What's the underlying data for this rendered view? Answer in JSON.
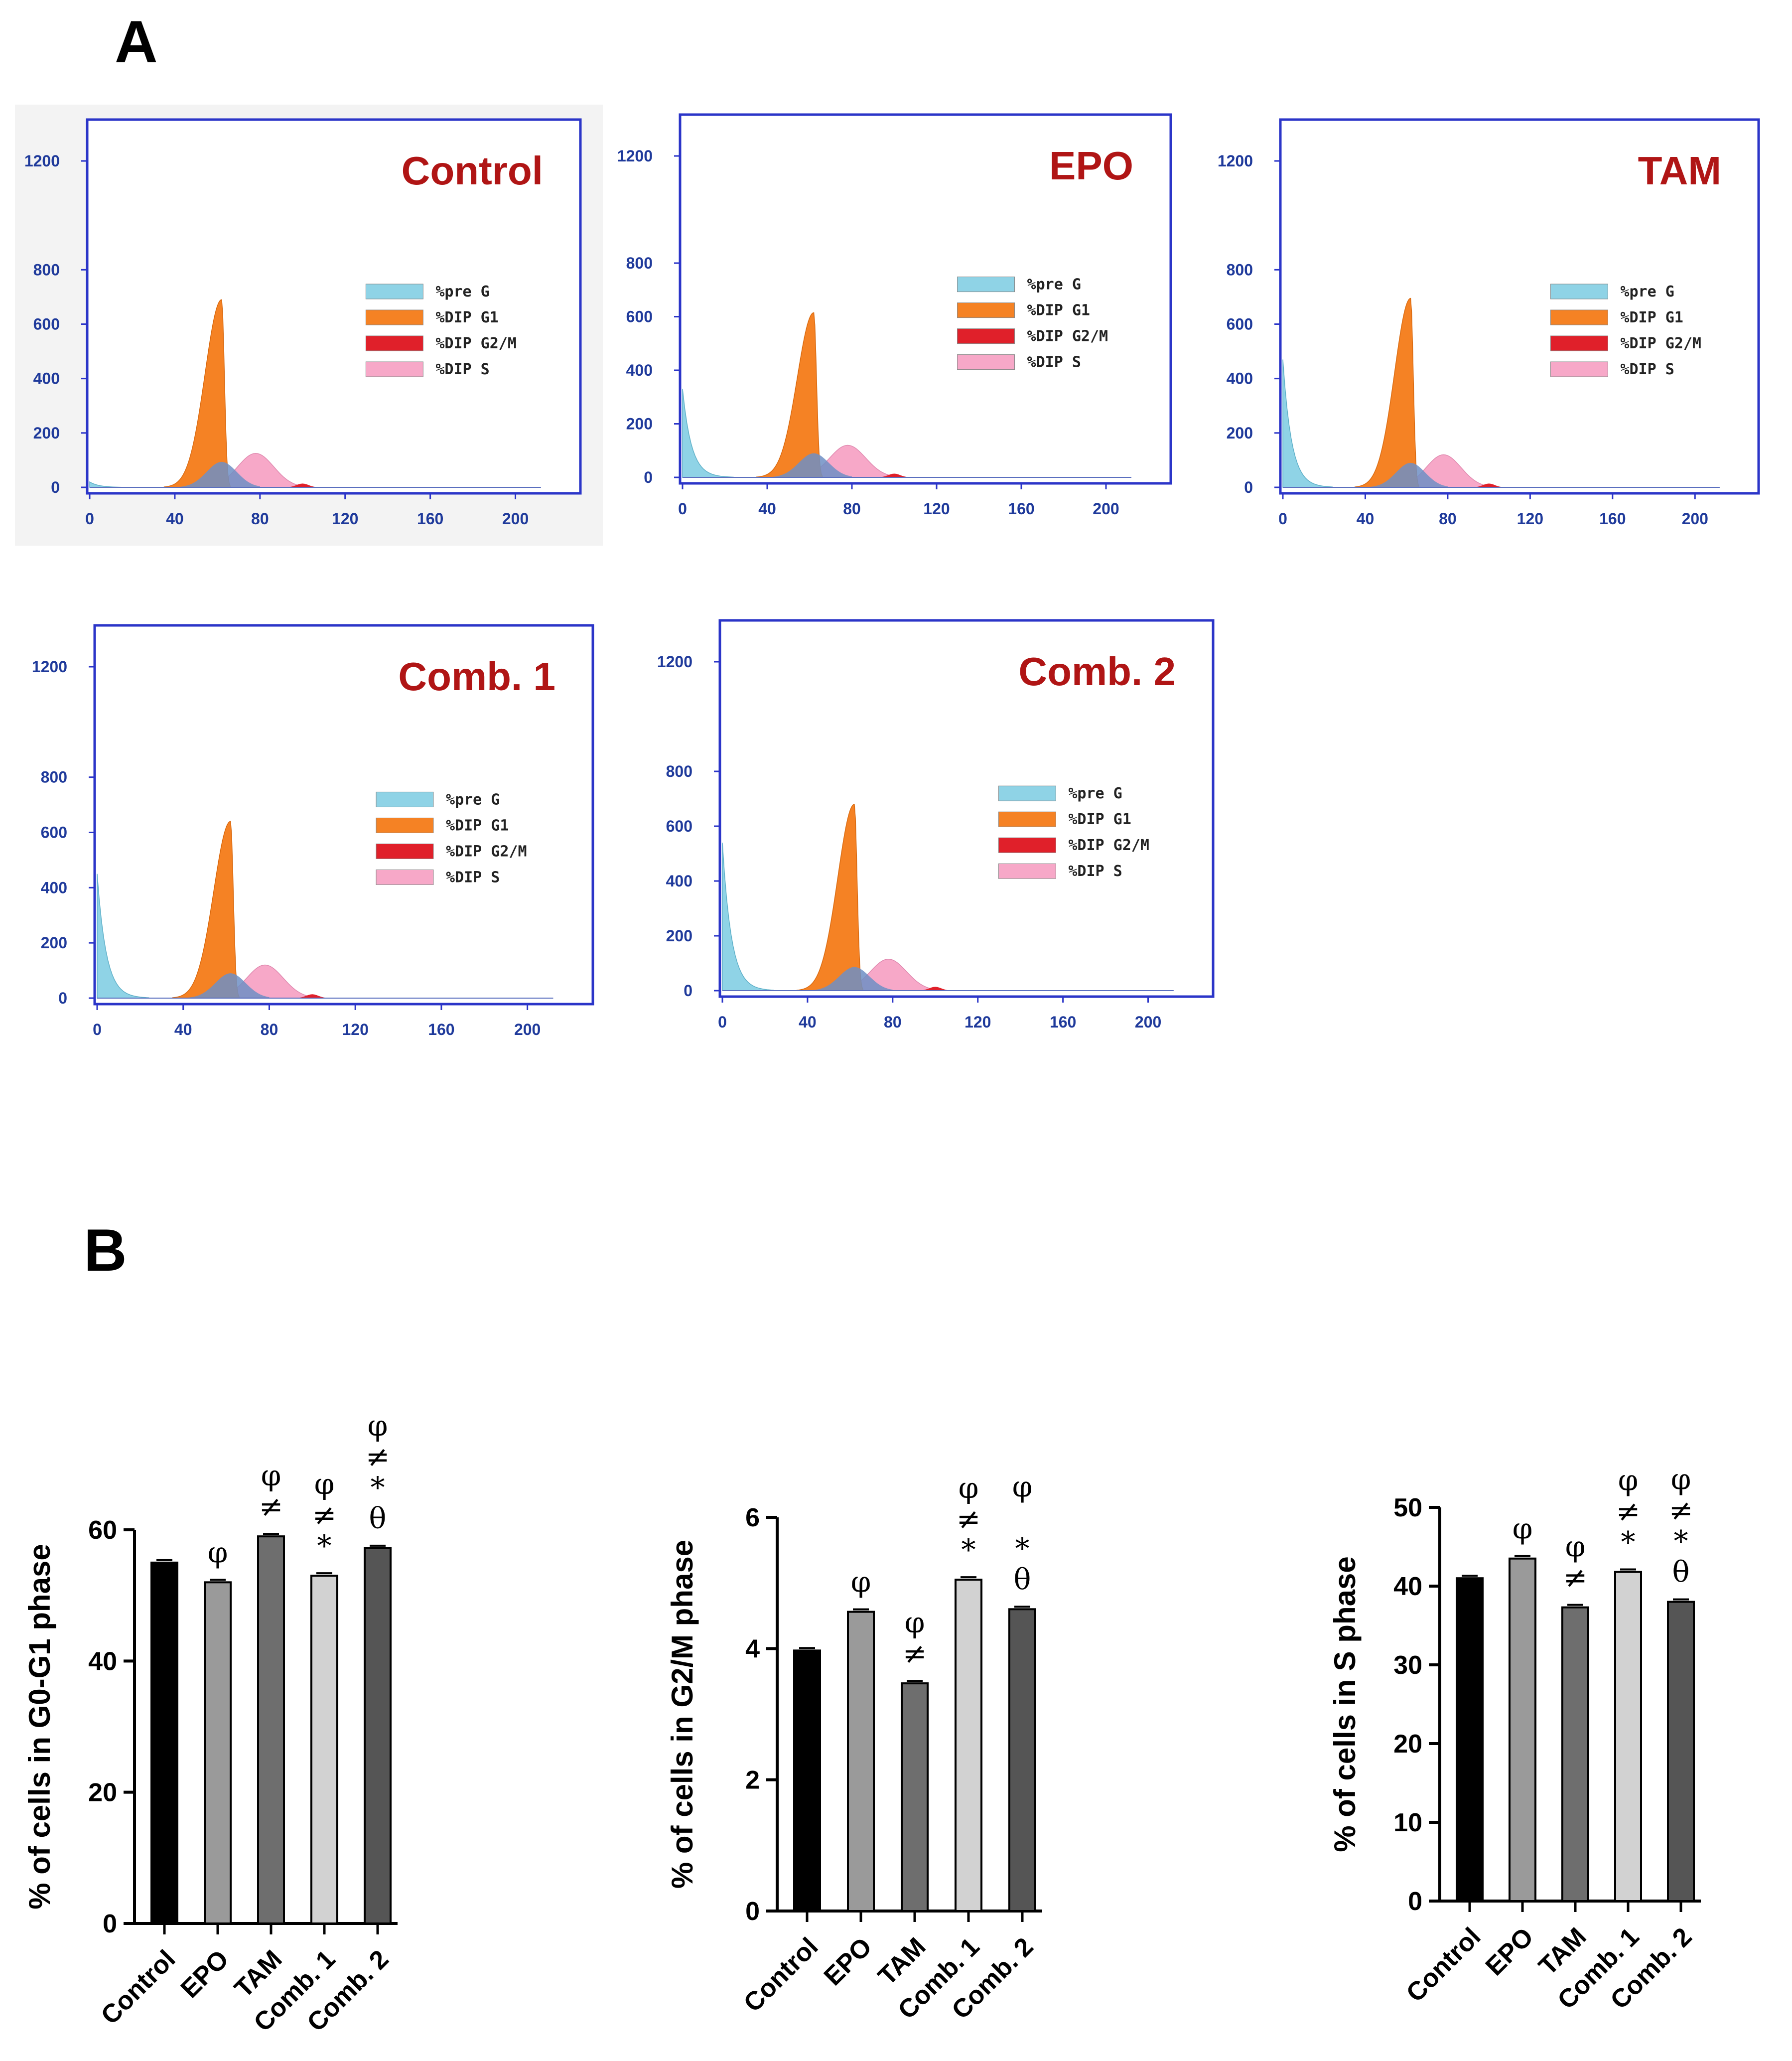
{
  "panel_a": {
    "label": "A",
    "x_ticks": [
      "0",
      "40",
      "80",
      "120",
      "160",
      "200"
    ],
    "y_ticks": [
      "0",
      "200",
      "400",
      "600",
      "800",
      "1200"
    ],
    "legend": [
      {
        "label": "%pre G",
        "color": "#8fd3e6"
      },
      {
        "label": "%DIP G1",
        "color": "#f58224"
      },
      {
        "label": "%DIP G2/M",
        "color": "#e0202a"
      },
      {
        "label": "%DIP S",
        "color": "#f7a8c8"
      }
    ],
    "histograms": [
      {
        "title": "Control",
        "preg_peak": 20,
        "g1_peak": 690,
        "s_peak": 125
      },
      {
        "title": "EPO",
        "preg_peak": 330,
        "g1_peak": 615,
        "s_peak": 120
      },
      {
        "title": "TAM",
        "preg_peak": 470,
        "g1_peak": 695,
        "s_peak": 120
      },
      {
        "title": "Comb. 1",
        "preg_peak": 450,
        "g1_peak": 640,
        "s_peak": 120
      },
      {
        "title": "Comb. 2",
        "preg_peak": 540,
        "g1_peak": 680,
        "s_peak": 115
      }
    ]
  },
  "panel_b": {
    "label": "B",
    "colors": {
      "Control": "#000000",
      "EPO": "#9a9a9a",
      "TAM": "#6e6e6e",
      "Comb. 1": "#d2d2d2",
      "Comb. 2": "#555555"
    }
  },
  "chart_data": [
    {
      "type": "bar",
      "title": "",
      "xlabel": "",
      "ylabel": "% of cells in G0-G1 phase",
      "categories": [
        "Control",
        "EPO",
        "TAM",
        "Comb. 1",
        "Comb. 2"
      ],
      "values": [
        55,
        52,
        59,
        53,
        57.2
      ],
      "ylim": [
        0,
        60
      ],
      "yticks": [
        "0",
        "20",
        "40",
        "60"
      ],
      "annotations": [
        [],
        [
          "φ"
        ],
        [
          "φ",
          "≠"
        ],
        [
          "φ",
          "≠",
          "*"
        ],
        [
          "φ",
          "≠",
          "*",
          "θ"
        ]
      ]
    },
    {
      "type": "bar",
      "title": "",
      "xlabel": "",
      "ylabel": "% of cells in G2/M phase",
      "categories": [
        "Control",
        "EPO",
        "TAM",
        "Comb. 1",
        "Comb. 2"
      ],
      "values": [
        3.97,
        4.56,
        3.47,
        5.05,
        4.6
      ],
      "ylim": [
        0,
        6
      ],
      "yticks": [
        "0",
        "2",
        "4",
        "6"
      ],
      "annotations": [
        [],
        [
          "φ"
        ],
        [
          "φ",
          "≠"
        ],
        [
          "φ",
          "≠",
          "*"
        ],
        [
          "φ",
          "",
          "*",
          "θ"
        ]
      ]
    },
    {
      "type": "bar",
      "title": "",
      "xlabel": "",
      "ylabel": "% of cells in S phase",
      "categories": [
        "Control",
        "EPO",
        "TAM",
        "Comb. 1",
        "Comb. 2"
      ],
      "values": [
        41,
        43.5,
        37.3,
        41.8,
        38
      ],
      "ylim": [
        0,
        50
      ],
      "yticks": [
        "0",
        "10",
        "20",
        "30",
        "40",
        "50"
      ],
      "annotations": [
        [],
        [
          "φ"
        ],
        [
          "φ",
          "≠"
        ],
        [
          "φ",
          "≠",
          "*"
        ],
        [
          "φ",
          "≠",
          "*",
          "θ"
        ]
      ]
    }
  ]
}
